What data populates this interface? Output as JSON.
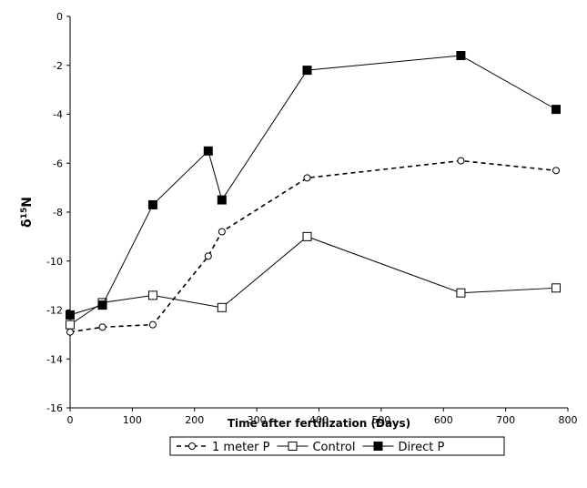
{
  "chart_data": {
    "type": "line",
    "xlabel": "Time after fertilization (Days)",
    "ylabel_main": "δ",
    "ylabel_sup": "15",
    "ylabel_suffix": "N",
    "xlim": [
      0,
      800
    ],
    "ylim": [
      -16,
      0
    ],
    "xticks": [
      0,
      100,
      200,
      300,
      400,
      500,
      600,
      700,
      800
    ],
    "yticks": [
      0,
      -2,
      -4,
      -6,
      -8,
      -10,
      -12,
      -14,
      -16
    ],
    "grid": false,
    "legend_position": "bottom",
    "series": [
      {
        "name": "1 meter P",
        "line_style": "dashed",
        "marker": "open-circle",
        "color": "#000000",
        "points": [
          [
            0,
            -12.9
          ],
          [
            52,
            -12.7
          ],
          [
            133,
            -12.6
          ],
          [
            222,
            -9.8
          ],
          [
            244,
            -8.8
          ],
          [
            381,
            -6.6
          ],
          [
            628,
            -5.9
          ],
          [
            781,
            -6.3
          ]
        ]
      },
      {
        "name": "Control",
        "line_style": "solid",
        "marker": "open-square",
        "color": "#000000",
        "points": [
          [
            0,
            -12.6
          ],
          [
            52,
            -11.7
          ],
          [
            133,
            -11.4
          ],
          [
            244,
            -11.9
          ],
          [
            381,
            -9.0
          ],
          [
            628,
            -11.3
          ],
          [
            781,
            -11.1
          ]
        ]
      },
      {
        "name": "Direct P",
        "line_style": "solid",
        "marker": "filled-square",
        "color": "#000000",
        "points": [
          [
            0,
            -12.2
          ],
          [
            52,
            -11.8
          ],
          [
            133,
            -7.7
          ],
          [
            222,
            -5.5
          ],
          [
            244,
            -7.5
          ],
          [
            381,
            -2.2
          ],
          [
            628,
            -1.6
          ],
          [
            781,
            -3.8
          ]
        ]
      }
    ]
  }
}
